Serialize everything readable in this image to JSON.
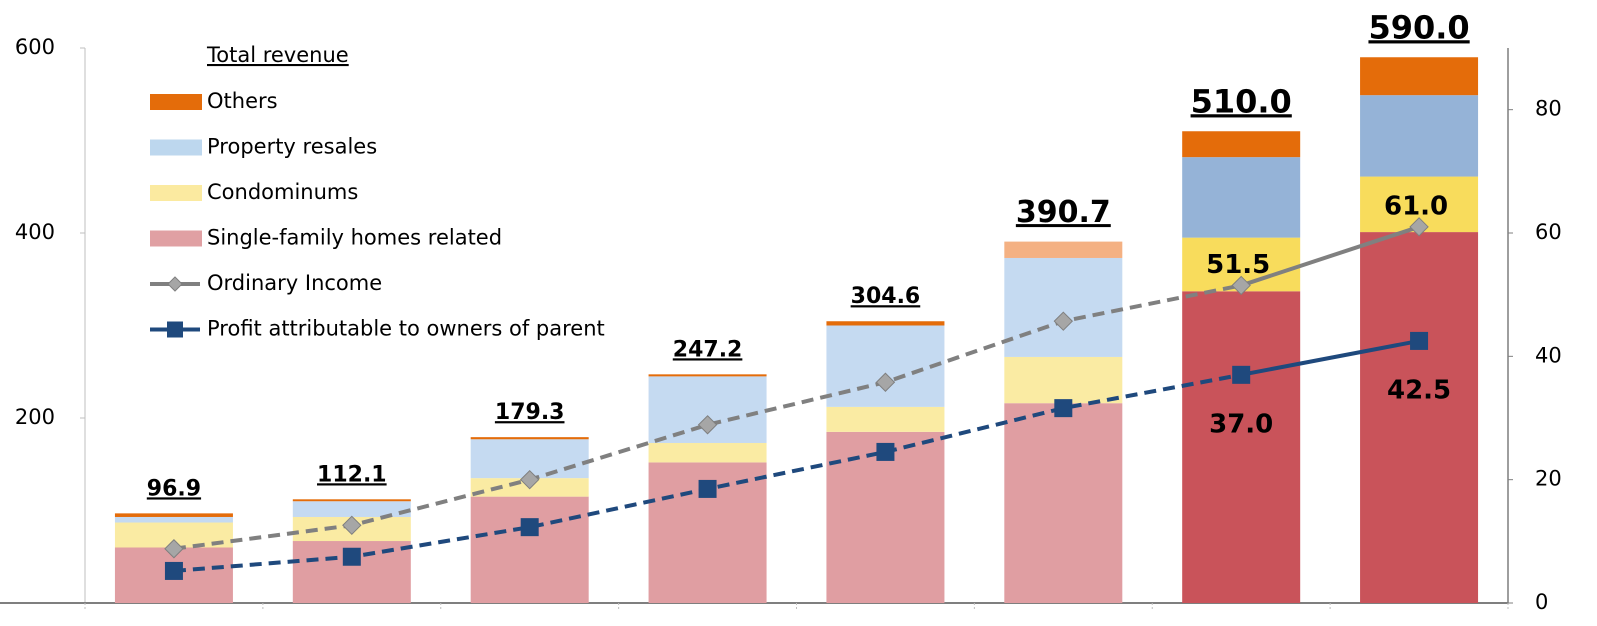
{
  "chart_data": {
    "type": "bar",
    "stacked": true,
    "legend_title": "Total revenue",
    "categories": [
      null,
      null,
      null,
      null,
      null,
      null,
      null,
      null
    ],
    "series": [
      {
        "name": "Single-family homes related",
        "color": "#e0a0a3",
        "values": [
          60,
          67,
          115,
          152,
          185,
          216,
          337,
          401
        ],
        "colors": [
          "#e09ea2",
          "#e09ea2",
          "#e09ea2",
          "#e09ea2",
          "#e09ea2",
          "#e09ea2",
          "#c9535a",
          "#c9535a"
        ]
      },
      {
        "name": "Condominums",
        "color": "#fbeaa0",
        "values": [
          27,
          26,
          20,
          21,
          27,
          50,
          58,
          60
        ],
        "colors": [
          "#faeba3",
          "#faeba3",
          "#faeba3",
          "#faeba3",
          "#faeba3",
          "#faeba3",
          "#f8dc5c",
          "#f8dc5c"
        ]
      },
      {
        "name": "Property resales",
        "color": "#bdd7ee",
        "values": [
          6,
          17,
          42,
          72,
          88,
          107,
          87,
          88
        ],
        "colors": [
          "#c5daf1",
          "#c5daf1",
          "#c5daf1",
          "#c5daf1",
          "#c5daf1",
          "#c5daf1",
          "#95b3d7",
          "#95b3d7"
        ]
      },
      {
        "name": "Others",
        "color": "#e46c0a",
        "values": [
          3.9,
          2.1,
          2.3,
          2.2,
          4.6,
          17.7,
          28,
          41
        ],
        "colors": [
          "#e46c0a",
          "#e46c0a",
          "#e46c0a",
          "#e46c0a",
          "#e46c0a",
          "#f4b183",
          "#e46c0a",
          "#e46c0a"
        ]
      },
      {
        "name": "Ordinary Income",
        "type": "line",
        "axis": "y2",
        "color": "#808080",
        "marker": "diamond",
        "marker_color": "#a6a6a6",
        "solid_from_index": 6,
        "values": [
          8.8,
          12.6,
          20,
          28.9,
          35.8,
          45.7,
          51.5,
          61.0
        ],
        "value_labels": [
          null,
          null,
          null,
          null,
          null,
          null,
          "51.5",
          "61.0"
        ]
      },
      {
        "name": "Profit attributable to owners of parent",
        "type": "line",
        "axis": "y2",
        "color": "#1f497d",
        "marker": "square",
        "marker_color": "#1f497d",
        "solid_from_index": 6,
        "values": [
          5.2,
          7.5,
          12.3,
          18.5,
          24.5,
          31.6,
          37.0,
          42.5
        ],
        "value_labels": [
          null,
          null,
          null,
          null,
          null,
          null,
          "37.0",
          "42.5"
        ]
      }
    ],
    "totals": [
      96.9,
      112.1,
      179.3,
      247.2,
      304.6,
      390.7,
      510.0,
      590.0
    ],
    "total_labels": [
      "96.9",
      "112.1",
      "179.3",
      "247.2",
      "304.6",
      "390.7",
      "510.0",
      "590.0"
    ],
    "ylim": [
      0,
      600
    ],
    "yticks": [
      200,
      400,
      600
    ],
    "y2lim": [
      0,
      90
    ],
    "y2ticks": [
      0,
      20,
      40,
      60,
      80
    ]
  }
}
